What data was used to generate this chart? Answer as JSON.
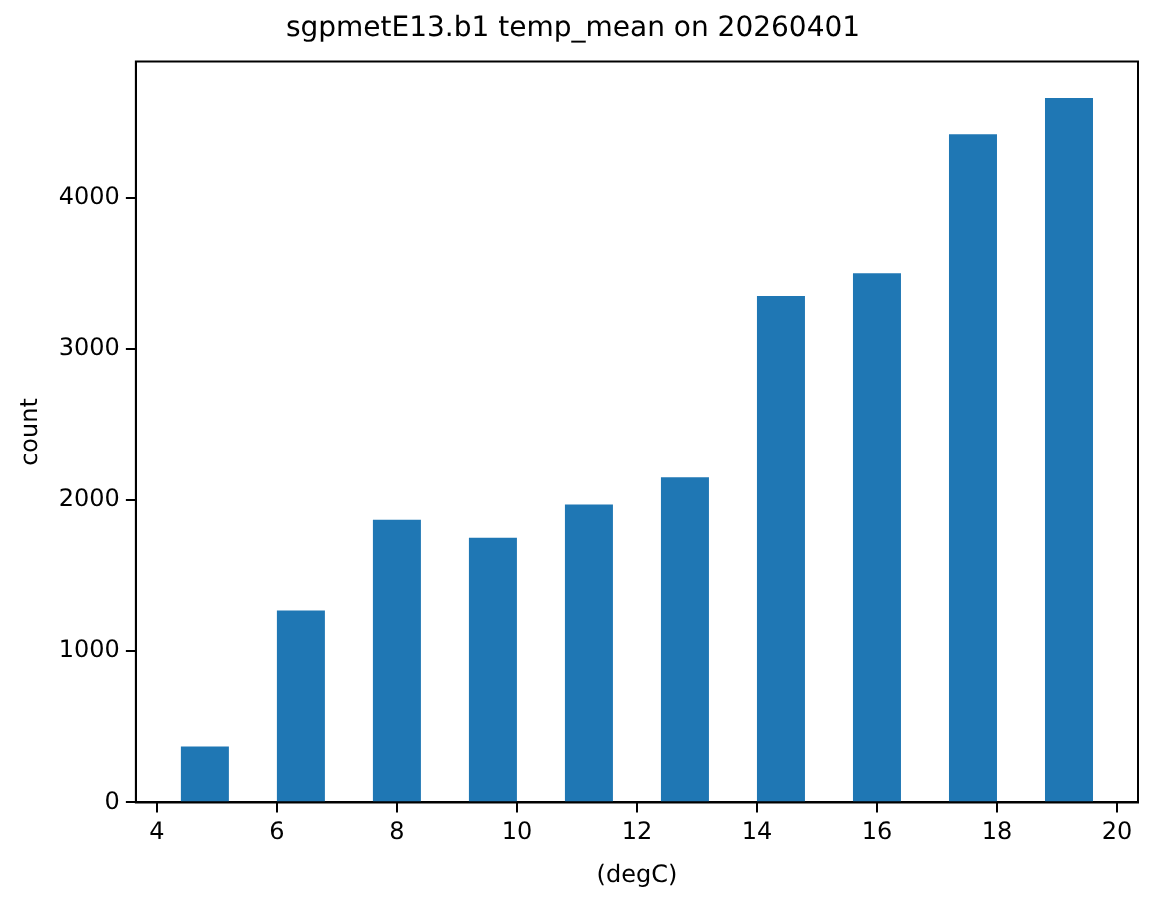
{
  "chart_data": {
    "type": "histogram",
    "title": "sgpmetE13.b1 temp_mean on 20260401",
    "xlabel": "(degC)",
    "ylabel": "count",
    "bins": [
      4,
      5.6,
      7.2,
      8.8,
      10.4,
      12,
      13.6,
      15.2,
      16.8,
      18.4,
      20
    ],
    "values": [
      370,
      1270,
      1870,
      1750,
      1970,
      2150,
      3350,
      3500,
      4420,
      4660
    ],
    "color": "#1f77b4",
    "xlim": [
      3.65,
      20.35
    ],
    "xticks": [
      4,
      6,
      8,
      10,
      12,
      14,
      16,
      18,
      20
    ],
    "ylim": [
      0,
      4900
    ],
    "yticks": [
      0,
      1000,
      2000,
      3000,
      4000
    ],
    "grid": false,
    "legend": false
  }
}
